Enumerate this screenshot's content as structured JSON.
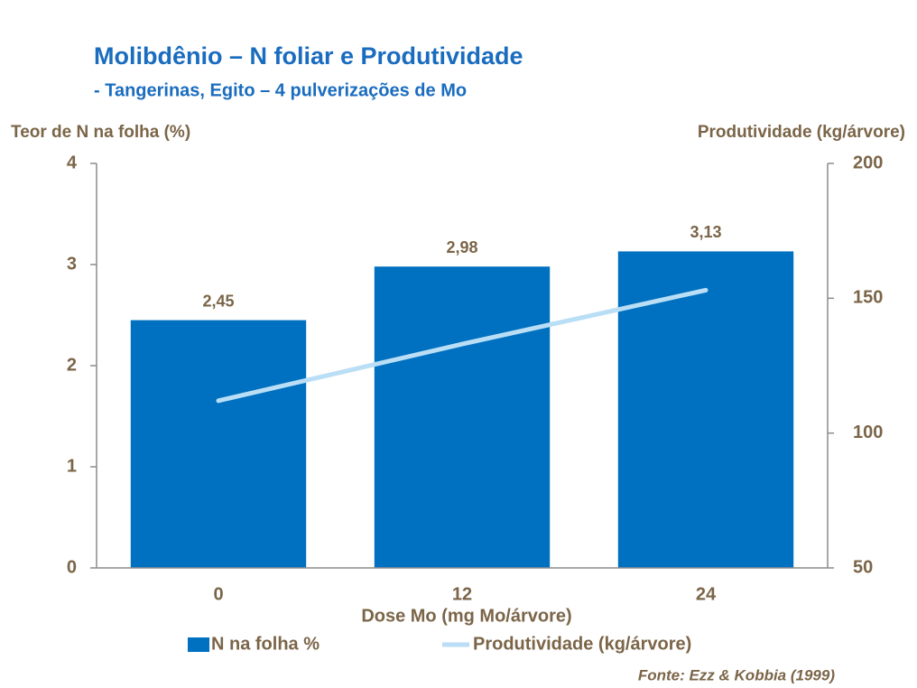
{
  "chart_data": {
    "type": "bar",
    "title": "Molibdênio – N foliar e Produtividade",
    "subtitle": "- Tangerinas, Egito – 4 pulverizações de Mo",
    "y_label": "Teor de N na folha (%)",
    "y2_label": "Produtividade (kg/árvore)",
    "x_label": "Dose Mo (mg Mo/árvore)",
    "source": "Fonte: Ezz & Kobbia (1999)",
    "categories": [
      "0",
      "12",
      "24"
    ],
    "series": [
      {
        "name": "N na folha %",
        "type": "bar",
        "color": "#0070c0",
        "values": [
          2.45,
          2.98,
          3.13
        ],
        "value_labels": [
          "2,45",
          "2,98",
          "3,13"
        ]
      },
      {
        "name": "Produtividade (kg/árvore)",
        "type": "line",
        "axis": "y2",
        "color": "#b9def5",
        "values": [
          112,
          133,
          153
        ]
      }
    ],
    "ylim": [
      0,
      4
    ],
    "yticks": [
      0,
      1,
      2,
      3,
      4
    ],
    "y2lim": [
      50,
      200
    ],
    "y2ticks": [
      50,
      100,
      150,
      200
    ],
    "legend": "bottom",
    "grid": false
  }
}
